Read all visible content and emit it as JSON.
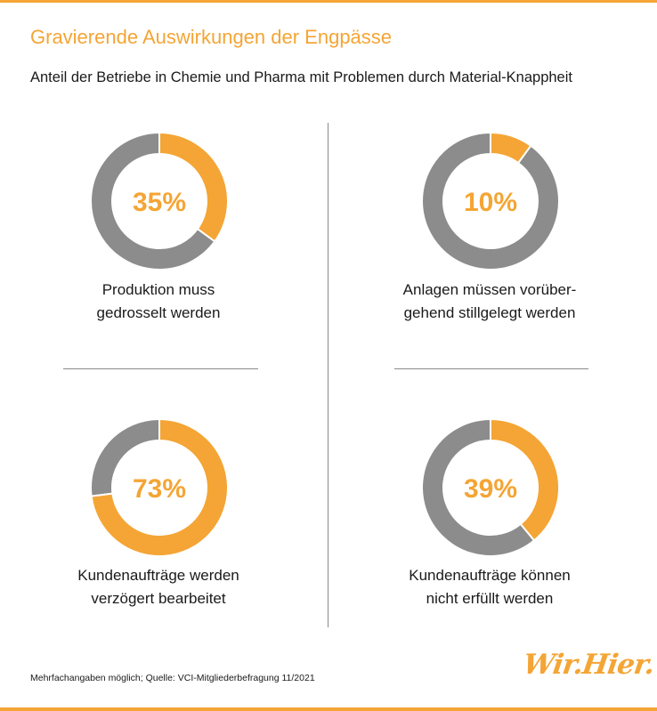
{
  "colors": {
    "accent": "#f4a535",
    "remainder": "#8c8c8c",
    "text": "#1a1a1a",
    "rule": "#f4a535"
  },
  "title": "Gravierende Auswirkungen der Engpässe",
  "subtitle": "Anteil der Betriebe in Chemie und Pharma mit Problemen durch Material-Knappheit",
  "chart_data": [
    {
      "type": "pie",
      "variant": "donut",
      "value_percent": 35,
      "value_label": "35%",
      "label_lines": [
        "Produktion muss",
        "gedrosselt werden"
      ]
    },
    {
      "type": "pie",
      "variant": "donut",
      "value_percent": 10,
      "value_label": "10%",
      "label_lines": [
        "Anlagen müssen vorüber-",
        "gehend stillgelegt werden"
      ]
    },
    {
      "type": "pie",
      "variant": "donut",
      "value_percent": 73,
      "value_label": "73%",
      "label_lines": [
        "Kundenaufträge werden",
        "verzögert bearbeitet"
      ]
    },
    {
      "type": "pie",
      "variant": "donut",
      "value_percent": 39,
      "value_label": "39%",
      "label_lines": [
        "Kundenaufträge können",
        "nicht erfüllt werden"
      ]
    }
  ],
  "footnote": "Mehrfachangaben möglich; Quelle: VCI-Mitgliederbefragung 11/2021",
  "logo_text": "Wir.Hier."
}
